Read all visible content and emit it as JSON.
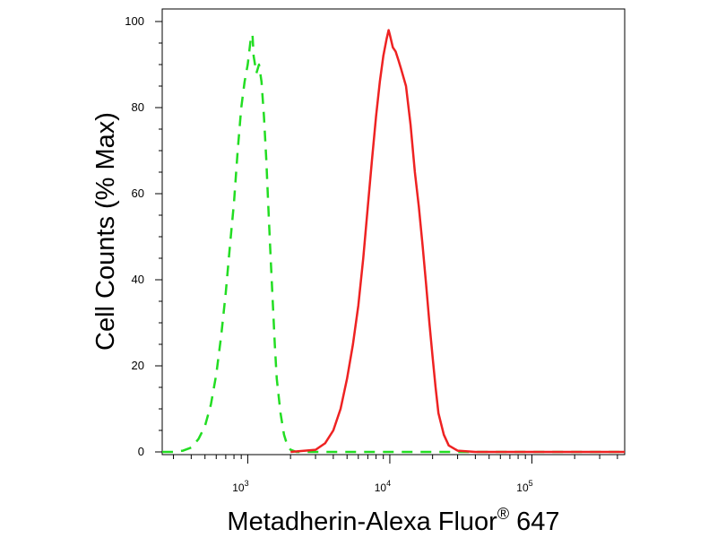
{
  "chart_data": {
    "type": "line",
    "title": "",
    "xlabel": "Metadherin-Alexa Fluor",
    "xlabel_superscript": "®",
    "xlabel_suffix": " 647",
    "ylabel": "Cell Counts (% Max)",
    "xscale": "log",
    "xlim": [
      250,
      450000
    ],
    "ylim": [
      0,
      100
    ],
    "yticks": [
      0,
      20,
      40,
      60,
      80,
      100
    ],
    "xticks": [
      {
        "value": 1000,
        "base": "10",
        "exp": "3"
      },
      {
        "value": 10000,
        "base": "10",
        "exp": "4"
      },
      {
        "value": 100000,
        "base": "10",
        "exp": "5"
      }
    ],
    "grid": false,
    "legend": "none",
    "series": [
      {
        "color": "#22dd22",
        "style": "dashed",
        "x": [
          250,
          300,
          350,
          400,
          450,
          500,
          550,
          600,
          650,
          700,
          750,
          800,
          850,
          900,
          950,
          1000,
          1050,
          1080,
          1100,
          1150,
          1200,
          1250,
          1300,
          1350,
          1400,
          1450,
          1500,
          1550,
          1600,
          1700,
          1800,
          1900,
          2000,
          2200,
          2500,
          3000,
          5000,
          10000,
          20000,
          50000,
          100000,
          200000,
          450000
        ],
        "y": [
          0,
          0,
          0.3,
          1,
          3,
          6,
          11,
          18,
          27,
          37,
          48,
          58,
          70,
          80,
          86,
          90,
          96,
          97,
          92,
          88,
          90,
          86,
          78,
          68,
          56,
          45,
          35,
          25,
          17,
          9,
          4,
          1.5,
          0.5,
          0,
          0,
          0,
          0,
          0,
          0,
          0,
          0,
          0,
          0
        ]
      },
      {
        "color": "#ee2222",
        "style": "solid",
        "x": [
          2000,
          3000,
          3500,
          4000,
          4500,
          5000,
          5500,
          6000,
          6500,
          7000,
          7500,
          8000,
          8500,
          9000,
          9500,
          9800,
          10000,
          10500,
          11000,
          11500,
          12000,
          13000,
          14000,
          15000,
          16000,
          17000,
          18000,
          19000,
          20000,
          21000,
          22000,
          24000,
          26000,
          30000,
          40000,
          100000,
          450000
        ],
        "y": [
          0,
          0.5,
          2,
          5,
          10,
          17,
          25,
          34,
          45,
          57,
          68,
          78,
          86,
          92,
          96,
          98,
          97,
          94,
          93,
          91,
          89,
          85,
          76,
          65,
          57,
          48,
          39,
          30,
          22,
          15,
          9,
          4,
          1.5,
          0.3,
          0,
          0,
          0
        ]
      }
    ]
  }
}
